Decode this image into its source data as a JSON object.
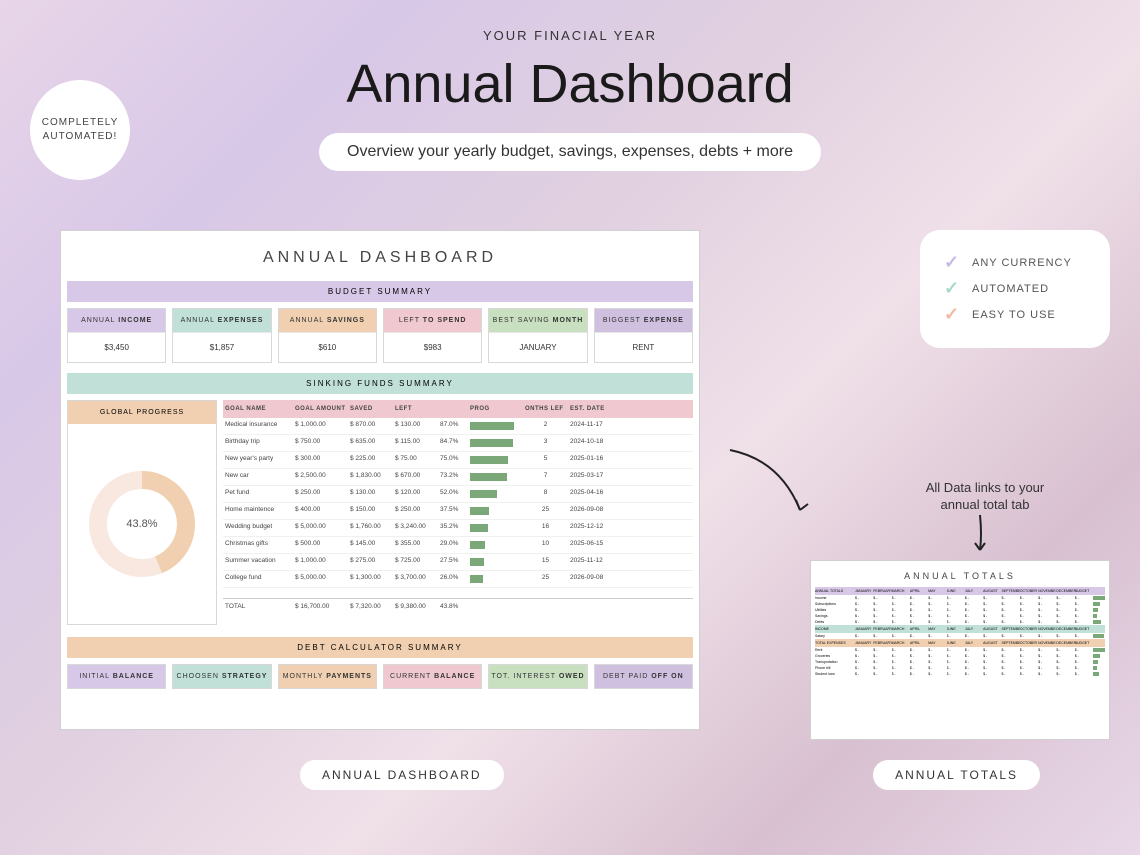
{
  "header": {
    "overtitle": "YOUR FINACIAL YEAR",
    "title": "Annual Dashboard",
    "subtitle": "Overview your yearly budget, savings, expenses, debts + more",
    "badge": "COMPLETELY AUTOMATED!"
  },
  "features": [
    {
      "label": "ANY CURRENCY",
      "color": "#c8b8e8"
    },
    {
      "label": "AUTOMATED",
      "color": "#a8d8c8"
    },
    {
      "label": "EASY TO USE",
      "color": "#f0b8a0"
    }
  ],
  "note": "All Data links to your annual total tab",
  "pills": {
    "left": "ANNUAL DASHBOARD",
    "right": "ANNUAL TOTALS"
  },
  "colors": {
    "purple": "#d8c8e8",
    "teal": "#c0e0d8",
    "orange": "#f0d0b0",
    "pink": "#f0c8d0",
    "green": "#c8e0c0",
    "lav": "#d0c0e0",
    "bar_green": "#7aa878",
    "donut_outer": "#f0d0b0",
    "donut_inner": "#f0c8d0"
  },
  "dashboard": {
    "title": "ANNUAL DASHBOARD",
    "sections": {
      "budget": "BUDGET SUMMARY",
      "sinking": "SINKING FUNDS SUMMARY",
      "debt": "DEBT CALCULATOR SUMMARY"
    },
    "budget_cards": [
      {
        "label_a": "ANNUAL",
        "label_b": "INCOME",
        "value": "$3,450",
        "cls": "hdr-purple"
      },
      {
        "label_a": "ANNUAL",
        "label_b": "EXPENSES",
        "value": "$1,857",
        "cls": "hdr-teal"
      },
      {
        "label_a": "ANNUAL",
        "label_b": "SAVINGS",
        "value": "$610",
        "cls": "hdr-orange"
      },
      {
        "label_a": "LEFT",
        "label_b": "TO SPEND",
        "value": "$983",
        "cls": "hdr-pink"
      },
      {
        "label_a": "BEST SAVING",
        "label_b": "MONTH",
        "value": "JANUARY",
        "cls": "hdr-green"
      },
      {
        "label_a": "BIGGEST",
        "label_b": "EXPENSE",
        "value": "RENT",
        "cls": "hdr-lav"
      }
    ],
    "global_progress": {
      "label": "GLOBAL PROGRESS",
      "percent": 43.8,
      "text": "43.8%"
    },
    "sinking_headers": [
      "GOAL NAME",
      "GOAL AMOUNT",
      "SAVED",
      "LEFT",
      "",
      "PROG",
      "ONTHS LEF",
      "EST. DATE"
    ],
    "sinking_rows": [
      {
        "name": "Medical insurance",
        "goal": "1,000.00",
        "saved": "870.00",
        "left": "130.00",
        "pct": "87.0%",
        "prog": 87,
        "months": "2",
        "date": "2024-11-17"
      },
      {
        "name": "Birthday trip",
        "goal": "750.00",
        "saved": "635.00",
        "left": "115.00",
        "pct": "84.7%",
        "prog": 84.7,
        "months": "3",
        "date": "2024-10-18"
      },
      {
        "name": "New year's party",
        "goal": "300.00",
        "saved": "225.00",
        "left": "75.00",
        "pct": "75.0%",
        "prog": 75,
        "months": "5",
        "date": "2025-01-16"
      },
      {
        "name": "New car",
        "goal": "2,500.00",
        "saved": "1,830.00",
        "left": "670.00",
        "pct": "73.2%",
        "prog": 73.2,
        "months": "7",
        "date": "2025-03-17"
      },
      {
        "name": "Pet fund",
        "goal": "250.00",
        "saved": "130.00",
        "left": "120.00",
        "pct": "52.0%",
        "prog": 52,
        "months": "8",
        "date": "2025-04-16"
      },
      {
        "name": "Home maintence",
        "goal": "400.00",
        "saved": "150.00",
        "left": "250.00",
        "pct": "37.5%",
        "prog": 37.5,
        "months": "25",
        "date": "2026-09-08"
      },
      {
        "name": "Wedding budget",
        "goal": "5,000.00",
        "saved": "1,760.00",
        "left": "3,240.00",
        "pct": "35.2%",
        "prog": 35.2,
        "months": "16",
        "date": "2025-12-12"
      },
      {
        "name": "Christmas gifts",
        "goal": "500.00",
        "saved": "145.00",
        "left": "355.00",
        "pct": "29.0%",
        "prog": 29,
        "months": "10",
        "date": "2025-06-15"
      },
      {
        "name": "Summer vacation",
        "goal": "1,000.00",
        "saved": "275.00",
        "left": "725.00",
        "pct": "27.5%",
        "prog": 27.5,
        "months": "15",
        "date": "2025-11-12"
      },
      {
        "name": "College fund",
        "goal": "5,000.00",
        "saved": "1,300.00",
        "left": "3,700.00",
        "pct": "26.0%",
        "prog": 26,
        "months": "25",
        "date": "2026-09-08"
      }
    ],
    "sinking_total": {
      "label": "TOTAL",
      "goal": "16,700.00",
      "saved": "7,320.00",
      "left": "9,380.00",
      "pct": "43.8%"
    },
    "debt_cards": [
      {
        "label_a": "INITIAL",
        "label_b": "BALANCE",
        "cls": "hdr-purple"
      },
      {
        "label_a": "CHOOSEN",
        "label_b": "STRATEGY",
        "cls": "hdr-teal"
      },
      {
        "label_a": "MONTHLY",
        "label_b": "PAYMENTS",
        "cls": "hdr-orange"
      },
      {
        "label_a": "CURRENT",
        "label_b": "BALANCE",
        "cls": "hdr-pink"
      },
      {
        "label_a": "TOT. INTEREST",
        "label_b": "OWED",
        "cls": "hdr-green"
      },
      {
        "label_a": "DEBT PAID",
        "label_b": "OFF ON",
        "cls": "hdr-lav"
      }
    ]
  },
  "mini": {
    "title": "ANNUAL TOTALS",
    "months": [
      "JANUARY",
      "FEBRUARY",
      "MARCH",
      "APRIL",
      "MAY",
      "JUNE",
      "JULY",
      "AUGUST",
      "SEPTEMBER",
      "OCTOBER",
      "NOVEMBER",
      "DECEMBER",
      "BUDGET"
    ],
    "sections": [
      {
        "cls": "mh-purple",
        "label": "ANNUAL TOTALS",
        "rows": [
          "Income",
          "Subscriptions",
          "Utilities",
          "Savings",
          "Debts"
        ],
        "bars": [
          100,
          60,
          45,
          30,
          70
        ]
      },
      {
        "cls": "mh-teal",
        "label": "INCOME",
        "rows": [
          "Salary"
        ],
        "bars": [
          90
        ]
      },
      {
        "cls": "mh-orange",
        "label": "TOTAL EXPENSES",
        "rows": [
          "Rent",
          "Groceries",
          "Transportation",
          "Phone bill",
          "Student loan"
        ],
        "bars": [
          100,
          55,
          40,
          35,
          50
        ]
      }
    ]
  }
}
